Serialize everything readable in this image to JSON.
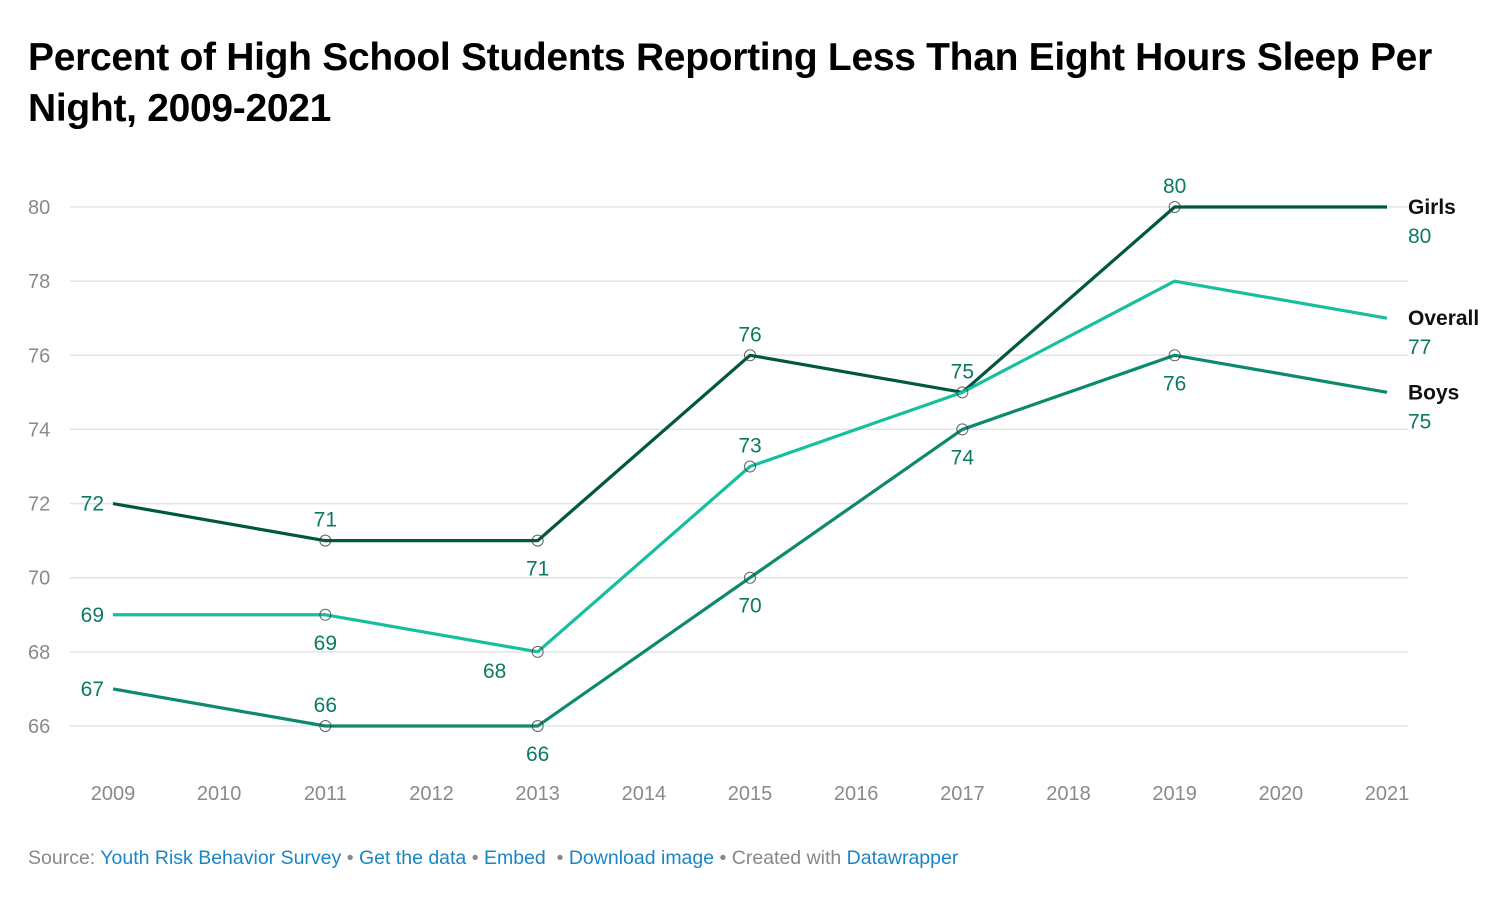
{
  "chart_data": {
    "type": "line",
    "title": "Percent of High School Students Reporting Less Than Eight Hours Sleep Per Night, 2009-2021",
    "xlabel": "",
    "ylabel": "",
    "x": [
      2009,
      2011,
      2013,
      2015,
      2017,
      2019,
      2021
    ],
    "x_ticks": [
      "2009",
      "2010",
      "2011",
      "2012",
      "2013",
      "2014",
      "2015",
      "2016",
      "2017",
      "2018",
      "2019",
      "2020",
      "2021"
    ],
    "y_ticks": [
      "66",
      "68",
      "70",
      "72",
      "74",
      "76",
      "78",
      "80"
    ],
    "xlim": [
      2009,
      2021
    ],
    "ylim": [
      65,
      80
    ],
    "grid": true,
    "legend": "direct labels at right end",
    "series": [
      {
        "name": "Girls",
        "color": "#01573f",
        "values": [
          72,
          71,
          71,
          76,
          75,
          80,
          80
        ],
        "markers": [
          false,
          true,
          true,
          true,
          true,
          true,
          false
        ],
        "labels": [
          "left",
          "above",
          "below",
          "above",
          null,
          "above",
          null
        ],
        "end_value": "80"
      },
      {
        "name": "Overall",
        "color": "#17bf9f",
        "values": [
          69,
          69,
          68,
          73,
          75,
          78,
          77
        ],
        "markers": [
          false,
          true,
          true,
          true,
          false,
          false,
          false
        ],
        "labels": [
          "left",
          "below",
          "below-left",
          "above",
          "above",
          null,
          null
        ],
        "end_value": "77"
      },
      {
        "name": "Boys",
        "color": "#0d8a6e",
        "values": [
          67,
          66,
          66,
          70,
          74,
          76,
          75
        ],
        "markers": [
          false,
          true,
          true,
          true,
          true,
          true,
          false
        ],
        "labels": [
          "left",
          "above",
          "below",
          "below",
          "below",
          "below",
          null
        ],
        "end_value": "75"
      }
    ],
    "label_color": "#0b7a62"
  },
  "footer": {
    "source_prefix": "Source: ",
    "source_link": "Youth Risk Behavior Survey",
    "get_data": "Get the data",
    "embed": "Embed",
    "download": "Download image",
    "created_with": "Created with ",
    "datawrapper": "Datawrapper",
    "sep": " • "
  }
}
